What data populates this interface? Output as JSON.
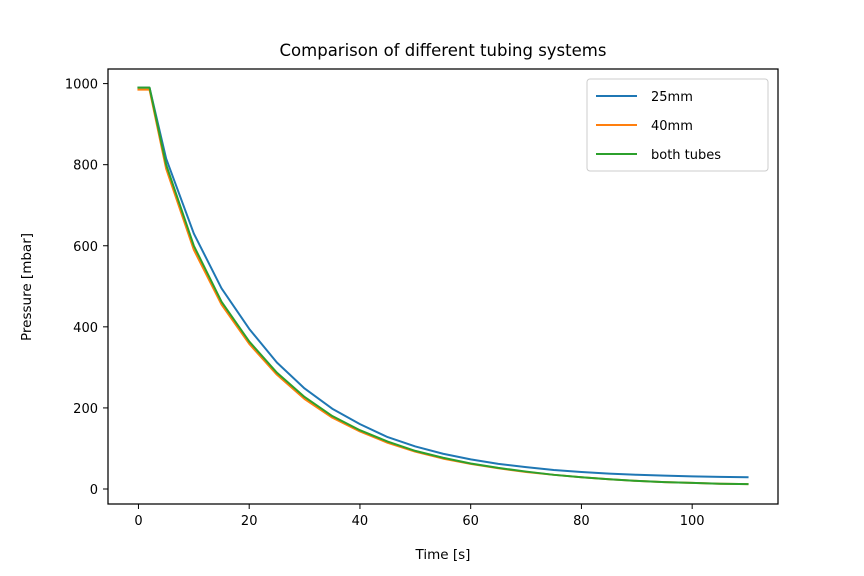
{
  "chart_data": {
    "type": "line",
    "title": "Comparison of different tubing systems",
    "xlabel": "Time [s]",
    "ylabel": "Pressure [mbar]",
    "xlim": [
      -5.5,
      115.5
    ],
    "ylim": [
      -37,
      1036
    ],
    "xticks": [
      0,
      20,
      40,
      60,
      80,
      100
    ],
    "yticks": [
      0,
      200,
      400,
      600,
      800,
      1000
    ],
    "grid": false,
    "legend_position": "top-right",
    "series": [
      {
        "name": "25mm",
        "color": "#1f77b4",
        "x": [
          0,
          2,
          5,
          10,
          15,
          20,
          25,
          30,
          35,
          40,
          45,
          50,
          55,
          60,
          65,
          70,
          75,
          80,
          85,
          90,
          95,
          100,
          105,
          110
        ],
        "y": [
          990,
          990,
          815,
          630,
          495,
          395,
          312,
          248,
          198,
          160,
          128,
          105,
          87,
          73,
          62,
          54,
          47,
          42,
          38,
          35,
          33,
          31,
          30,
          29
        ]
      },
      {
        "name": "40mm",
        "color": "#ff7f0e",
        "x": [
          0,
          2,
          5,
          10,
          15,
          20,
          25,
          30,
          35,
          40,
          45,
          50,
          55,
          60,
          65,
          70,
          75,
          80,
          85,
          90,
          95,
          100,
          105,
          110
        ],
        "y": [
          985,
          985,
          790,
          590,
          455,
          358,
          282,
          222,
          176,
          142,
          114,
          92,
          75,
          62,
          51,
          42,
          35,
          29,
          24,
          20,
          17,
          15,
          13,
          12
        ]
      },
      {
        "name": "both tubes",
        "color": "#2ca02c",
        "x": [
          0,
          2,
          5,
          10,
          15,
          20,
          25,
          30,
          35,
          40,
          45,
          50,
          55,
          60,
          65,
          70,
          75,
          80,
          85,
          90,
          95,
          100,
          105,
          110
        ],
        "y": [
          990,
          990,
          800,
          600,
          462,
          364,
          287,
          227,
          180,
          145,
          117,
          94,
          77,
          63,
          52,
          43,
          35,
          29,
          24,
          20,
          17,
          15,
          13,
          12
        ]
      }
    ]
  }
}
